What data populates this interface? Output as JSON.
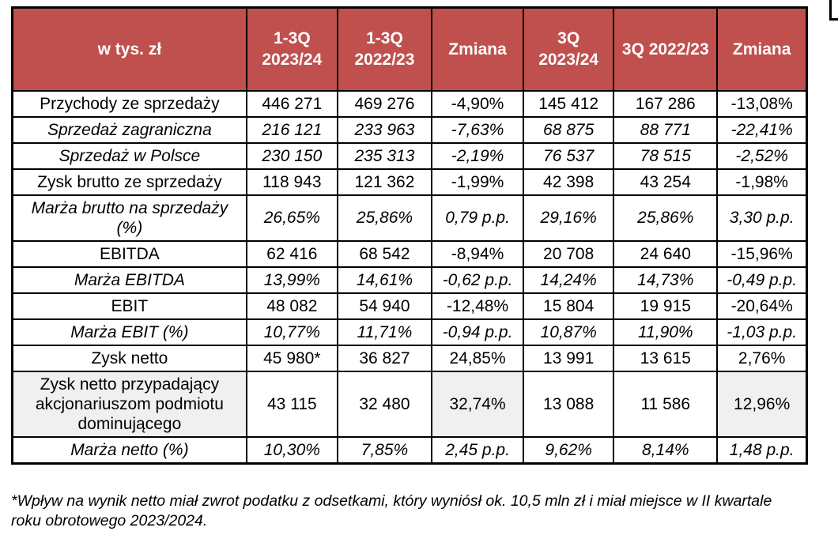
{
  "colors": {
    "accent_red": "#C0504D",
    "row_gray": "#F0F0F0",
    "border_black": "#000000",
    "header_text": "#FFFFFF"
  },
  "decorations": {
    "corner_box": "partial-white-box-top-right"
  },
  "table": {
    "columns": [
      "w tys. zł",
      "1-3Q 2023/24",
      "1-3Q 2022/23",
      "Zmiana",
      "3Q 2023/24",
      "3Q 2022/23",
      "Zmiana"
    ],
    "rows": [
      {
        "label": "Przychody ze sprzedaży",
        "values": [
          "446 271",
          "469 276",
          "-4,90%",
          "145 412",
          "167 286",
          "-13,08%"
        ],
        "italic": false,
        "gray": false
      },
      {
        "label": "Sprzedaż zagraniczna",
        "values": [
          "216 121",
          "233 963",
          "-7,63%",
          "68 875",
          "88 771",
          "-22,41%"
        ],
        "italic": true,
        "gray": false
      },
      {
        "label": "Sprzedaż w Polsce",
        "values": [
          "230 150",
          "235 313",
          "-2,19%",
          "76 537",
          "78 515",
          "-2,52%"
        ],
        "italic": true,
        "gray": false
      },
      {
        "label": "Zysk brutto ze sprzedaży",
        "values": [
          "118 943",
          "121 362",
          "-1,99%",
          "42 398",
          "43 254",
          "-1,98%"
        ],
        "italic": false,
        "gray": false
      },
      {
        "label": "Marża brutto na sprzedaży (%)",
        "values": [
          "26,65%",
          "25,86%",
          "0,79 p.p.",
          "29,16%",
          "25,86%",
          "3,30 p.p."
        ],
        "italic": true,
        "gray": true
      },
      {
        "label": "EBITDA",
        "values": [
          "62 416",
          "68 542",
          "-8,94%",
          "20 708",
          "24 640",
          "-15,96%"
        ],
        "italic": false,
        "gray": false
      },
      {
        "label": "Marża EBITDA",
        "values": [
          "13,99%",
          "14,61%",
          "-0,62 p.p.",
          "14,24%",
          "14,73%",
          "-0,49 p.p."
        ],
        "italic": true,
        "gray": true
      },
      {
        "label": "EBIT",
        "values": [
          "48 082",
          "54 940",
          "-12,48%",
          "15 804",
          "19 915",
          "-20,64%"
        ],
        "italic": false,
        "gray": false
      },
      {
        "label": "Marża EBIT (%)",
        "values": [
          "10,77%",
          "11,71%",
          "-0,94 p.p.",
          "10,87%",
          "11,90%",
          "-1,03 p.p."
        ],
        "italic": true,
        "gray": true
      },
      {
        "label": "Zysk netto",
        "values": [
          "45 980*",
          "36 827",
          "24,85%",
          "13 991",
          "13 615",
          "2,76%"
        ],
        "italic": false,
        "gray": false
      },
      {
        "label": "Zysk netto przypadający akcjonariuszom podmiotu dominującego",
        "values": [
          "43 115",
          "32 480",
          "32,74%",
          "13 088",
          "11 586",
          "12,96%"
        ],
        "italic": false,
        "gray": false,
        "gray_cells": [
          0,
          3,
          6
        ]
      },
      {
        "label": "Marża netto  (%)",
        "values": [
          "10,30%",
          "7,85%",
          "2,45 p.p.",
          "9,62%",
          "8,14%",
          "1,48 p.p."
        ],
        "italic": true,
        "gray": true
      }
    ]
  },
  "footnote": {
    "lines": [
      "*Wpływ na wynik netto miał zwrot podatku z odsetkami, który wyniósł ok. 10,5 mln zł i miał miejsce w II kwartale",
      "roku obrotowego 2023/2024."
    ]
  }
}
